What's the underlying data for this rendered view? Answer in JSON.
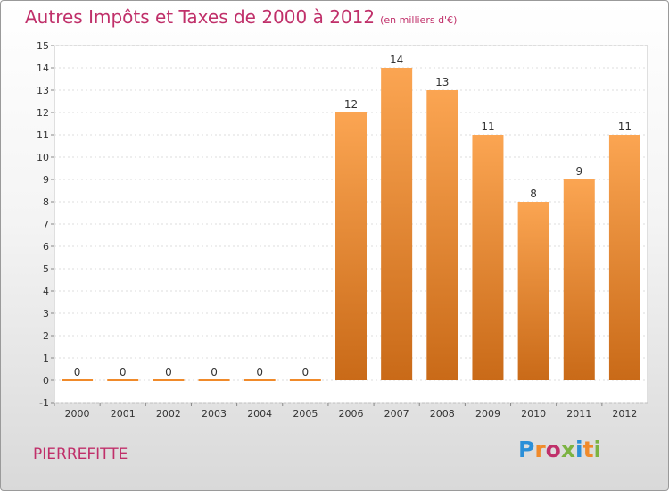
{
  "chart_data": {
    "type": "bar",
    "title": "Autres Impôts et Taxes de 2000 à 2012",
    "unit": "(en milliers d'€)",
    "categories": [
      "2000",
      "2001",
      "2002",
      "2003",
      "2004",
      "2005",
      "2006",
      "2007",
      "2008",
      "2009",
      "2010",
      "2011",
      "2012"
    ],
    "values": [
      0,
      0,
      0,
      0,
      0,
      0,
      12,
      14,
      13,
      11,
      8,
      9,
      11
    ],
    "ylim": [
      -1,
      15
    ],
    "yticks": [
      -1,
      0,
      1,
      2,
      3,
      4,
      5,
      6,
      7,
      8,
      9,
      10,
      11,
      12,
      13,
      14,
      15
    ],
    "grid": true,
    "bar_color": "#f08a2a"
  },
  "commune": "PIERREFITTE",
  "logo": {
    "letters": [
      "P",
      "r",
      "o",
      "x",
      "i",
      "t",
      "i"
    ],
    "colors": [
      "#2b8fd8",
      "#f08a2a",
      "#c0306a",
      "#7cb342",
      "#2b8fd8",
      "#f08a2a",
      "#7cb342"
    ]
  }
}
